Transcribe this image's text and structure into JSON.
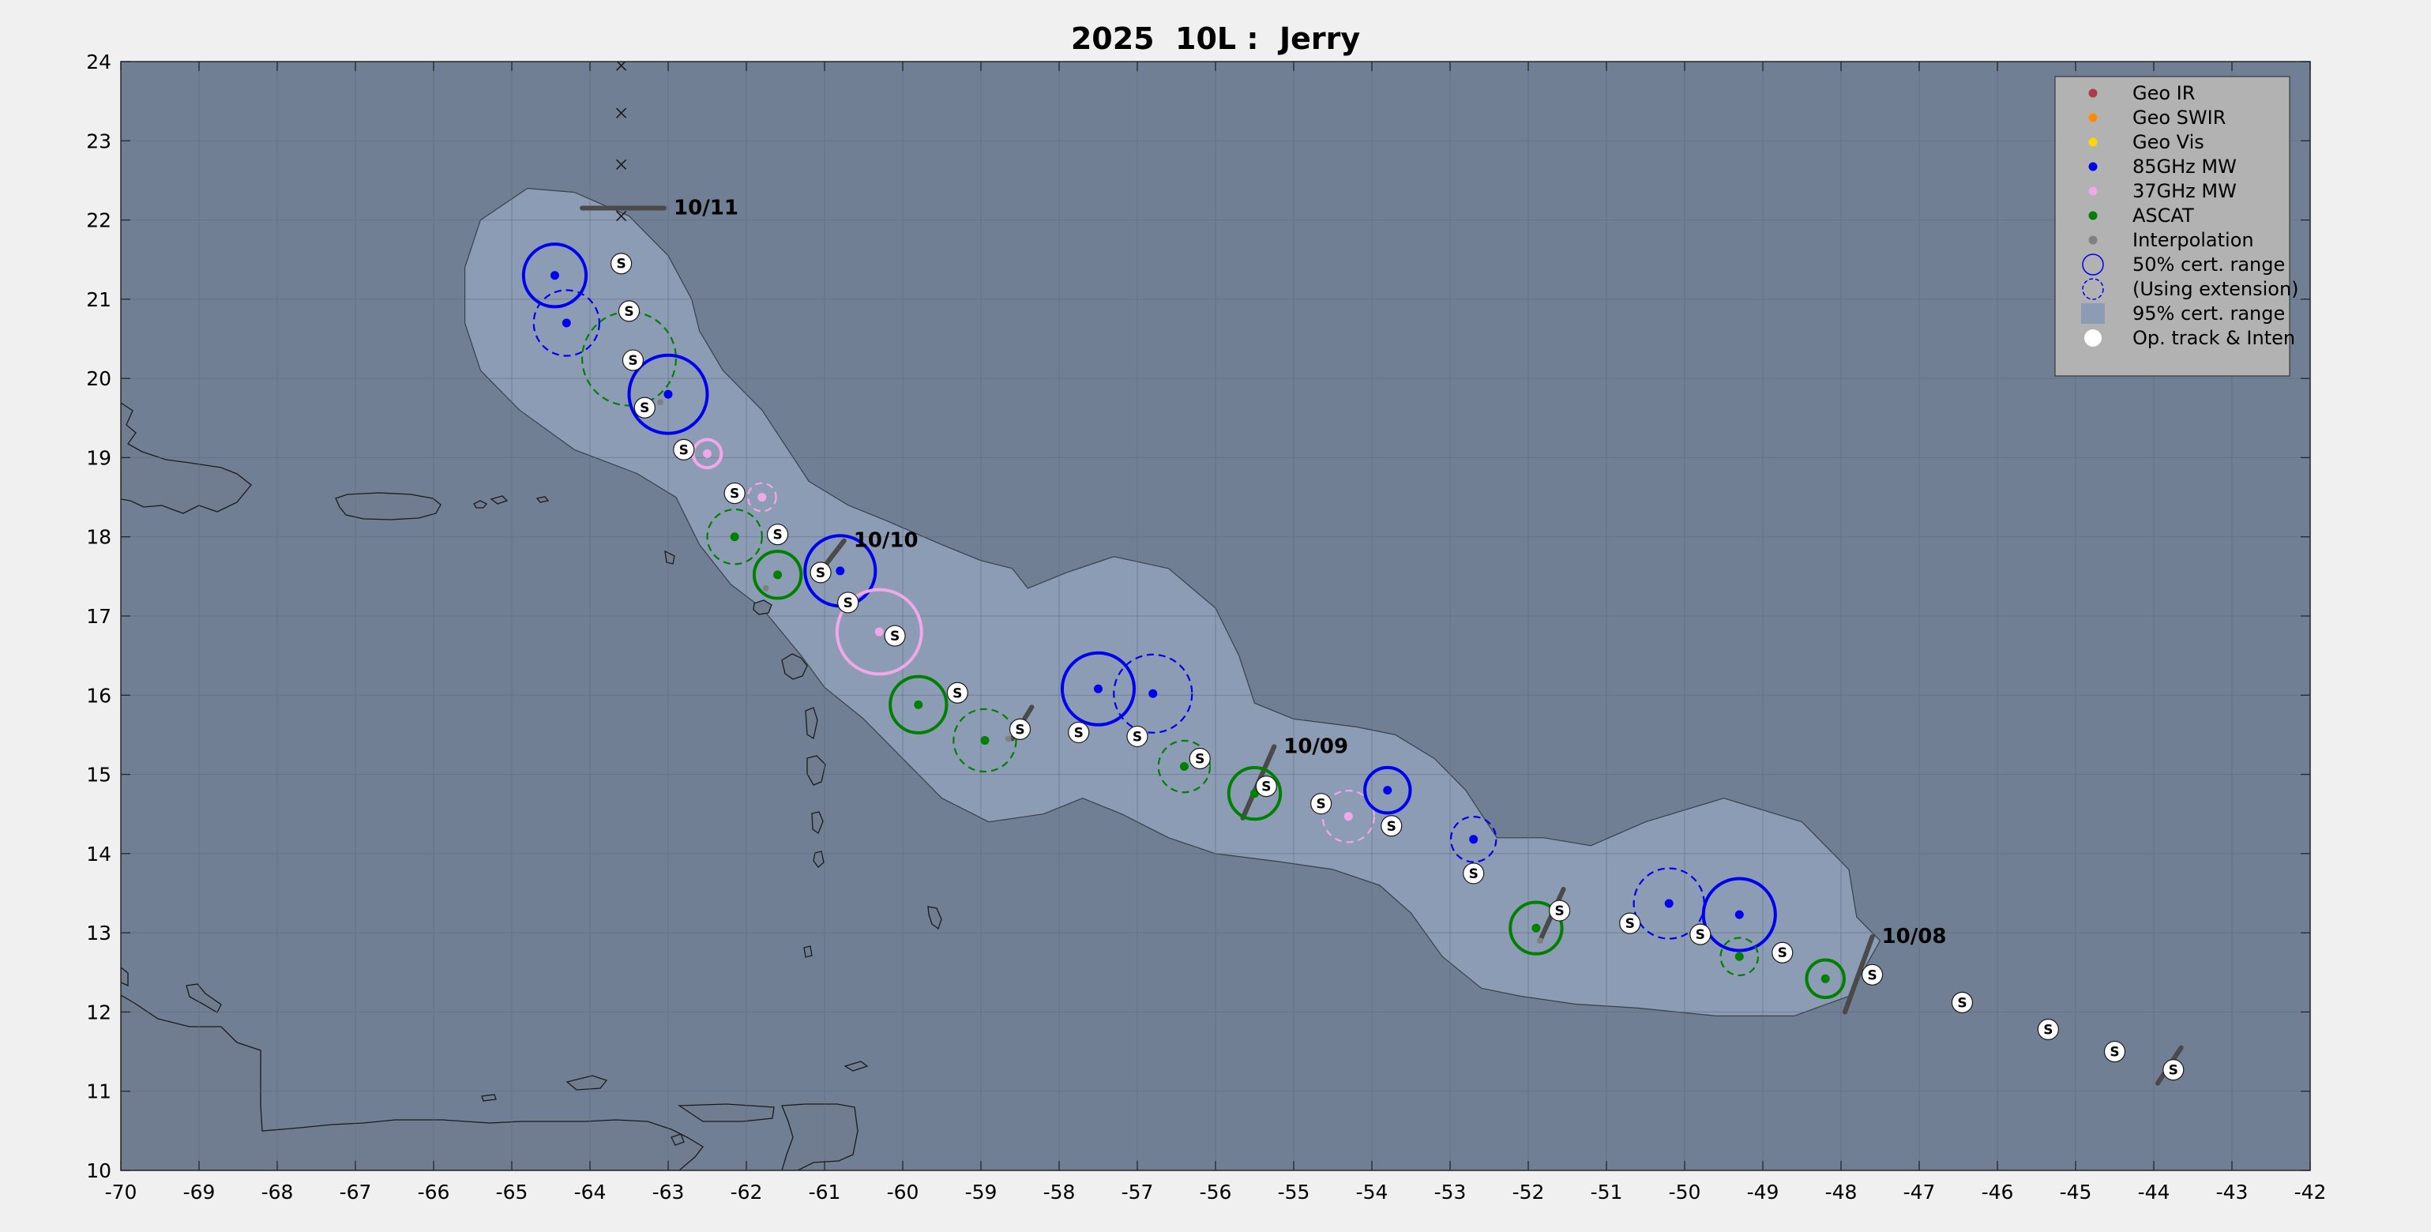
{
  "chart_data": {
    "type": "scatter",
    "title": "2025  10L :  Jerry",
    "xlabel": "",
    "ylabel": "",
    "xlim": [
      -70,
      -42
    ],
    "ylim": [
      10,
      24
    ],
    "grid": true,
    "x_ticks": [
      "-70",
      "-69",
      "-68",
      "-67",
      "-66",
      "-65",
      "-64",
      "-63",
      "-62",
      "-61",
      "-60",
      "-59",
      "-58",
      "-57",
      "-56",
      "-55",
      "-54",
      "-53",
      "-52",
      "-51",
      "-50",
      "-49",
      "-48",
      "-47",
      "-46",
      "-45",
      "-44",
      "-43",
      "-42"
    ],
    "y_ticks": [
      "10",
      "11",
      "12",
      "13",
      "14",
      "15",
      "16",
      "17",
      "18",
      "19",
      "20",
      "21",
      "22",
      "23",
      "24"
    ],
    "legend_position": "top-right",
    "legend": [
      {
        "label": "Geo IR",
        "symbol": "dot",
        "color": "#b03a48"
      },
      {
        "label": "Geo SWIR",
        "symbol": "dot",
        "color": "#ff8c00"
      },
      {
        "label": "Geo Vis",
        "symbol": "dot",
        "color": "#ffd700"
      },
      {
        "label": "85GHz MW",
        "symbol": "dot",
        "color": "#0000ee"
      },
      {
        "label": "37GHz MW",
        "symbol": "dot",
        "color": "#f0a8e8"
      },
      {
        "label": "ASCAT",
        "symbol": "dot",
        "color": "#008000"
      },
      {
        "label": "Interpolation",
        "symbol": "dot",
        "color": "#808080"
      },
      {
        "label": "50% cert. range",
        "symbol": "circle"
      },
      {
        "label": "(Using extension)",
        "symbol": "dashed-circle"
      },
      {
        "label": "95% cert. range",
        "symbol": "square",
        "color": "#8d9cb5"
      },
      {
        "label": "Op. track & Inten",
        "symbol": "white-dot"
      }
    ],
    "colors": {
      "ocean": "#717f94",
      "land": "#707d91",
      "cone": "#8d9cb5",
      "mw85": "#0000ee",
      "mw37": "#f0a8e8",
      "ascat": "#008000",
      "grid": "#5f6a7a"
    },
    "cone_outline": [
      [
        -64.8,
        22.4
      ],
      [
        -64.2,
        22.35
      ],
      [
        -63.5,
        22.05
      ],
      [
        -63.0,
        21.55
      ],
      [
        -62.7,
        21.0
      ],
      [
        -62.6,
        20.6
      ],
      [
        -62.3,
        20.1
      ],
      [
        -61.8,
        19.6
      ],
      [
        -61.5,
        19.15
      ],
      [
        -61.2,
        18.7
      ],
      [
        -60.7,
        18.4
      ],
      [
        -60.2,
        18.2
      ],
      [
        -59.5,
        17.9
      ],
      [
        -59.0,
        17.7
      ],
      [
        -58.6,
        17.6
      ],
      [
        -58.4,
        17.35
      ],
      [
        -57.9,
        17.55
      ],
      [
        -57.3,
        17.75
      ],
      [
        -56.6,
        17.6
      ],
      [
        -56.0,
        17.1
      ],
      [
        -55.7,
        16.5
      ],
      [
        -55.5,
        15.9
      ],
      [
        -55.0,
        15.7
      ],
      [
        -54.2,
        15.6
      ],
      [
        -53.7,
        15.5
      ],
      [
        -53.2,
        15.2
      ],
      [
        -52.8,
        14.8
      ],
      [
        -52.4,
        14.2
      ],
      [
        -51.8,
        14.2
      ],
      [
        -51.2,
        14.1
      ],
      [
        -50.5,
        14.4
      ],
      [
        -49.5,
        14.7
      ],
      [
        -48.5,
        14.4
      ],
      [
        -47.9,
        13.8
      ],
      [
        -47.8,
        13.2
      ],
      [
        -47.5,
        12.9
      ],
      [
        -47.9,
        12.2
      ],
      [
        -48.6,
        11.95
      ],
      [
        -49.6,
        11.95
      ],
      [
        -50.6,
        12.05
      ],
      [
        -51.4,
        12.1
      ],
      [
        -52.1,
        12.2
      ],
      [
        -52.6,
        12.3
      ],
      [
        -53.1,
        12.7
      ],
      [
        -53.5,
        13.25
      ],
      [
        -53.9,
        13.6
      ],
      [
        -54.5,
        13.8
      ],
      [
        -55.2,
        13.9
      ],
      [
        -56.0,
        14.0
      ],
      [
        -56.6,
        14.2
      ],
      [
        -57.2,
        14.5
      ],
      [
        -57.7,
        14.7
      ],
      [
        -58.2,
        14.5
      ],
      [
        -58.9,
        14.4
      ],
      [
        -59.5,
        14.7
      ],
      [
        -60.0,
        15.2
      ],
      [
        -60.5,
        15.7
      ],
      [
        -61.0,
        16.1
      ],
      [
        -61.3,
        16.5
      ],
      [
        -61.8,
        17.1
      ],
      [
        -62.2,
        17.4
      ],
      [
        -62.6,
        17.9
      ],
      [
        -62.9,
        18.5
      ],
      [
        -63.4,
        18.8
      ],
      [
        -64.2,
        19.1
      ],
      [
        -64.9,
        19.6
      ],
      [
        -65.4,
        20.1
      ],
      [
        -65.6,
        20.7
      ],
      [
        -65.6,
        21.4
      ],
      [
        -65.4,
        22.0
      ]
    ],
    "day_markers": [
      {
        "label": "10/11",
        "lon": -63.6,
        "lat": 22.15,
        "bar": [
          [
            -64.1,
            22.15
          ],
          [
            -63.05,
            22.15
          ]
        ]
      },
      {
        "label": "10/10",
        "lon": -60.65,
        "lat": 17.95,
        "bar": [
          [
            -61.1,
            17.5
          ],
          [
            -60.75,
            17.95
          ]
        ]
      },
      {
        "label": "10/09",
        "lon": -55.35,
        "lat": 15.35,
        "bar": [
          [
            -55.65,
            14.45
          ],
          [
            -55.25,
            15.35
          ]
        ]
      },
      {
        "label": "10/08",
        "lon": -47.6,
        "lat": 12.95,
        "bar": [
          [
            -47.95,
            12.0
          ],
          [
            -47.6,
            12.95
          ]
        ]
      }
    ],
    "x_markers": [
      [
        -63.6,
        23.95
      ],
      [
        -63.6,
        23.35
      ],
      [
        -63.6,
        22.7
      ],
      [
        -63.6,
        22.05
      ]
    ],
    "fixes": [
      {
        "lon": -64.45,
        "lat": 21.3,
        "r": 0.4,
        "color": "mw85",
        "ext": false
      },
      {
        "lon": -64.3,
        "lat": 20.7,
        "r": 0.42,
        "color": "mw85",
        "ext": true
      },
      {
        "lon": -63.5,
        "lat": 20.25,
        "r": 0.6,
        "color": "ascat",
        "ext": true
      },
      {
        "lon": -63.0,
        "lat": 19.8,
        "r": 0.5,
        "color": "mw85",
        "ext": false
      },
      {
        "lon": -62.5,
        "lat": 19.05,
        "r": 0.18,
        "color": "mw37",
        "ext": false
      },
      {
        "lon": -61.8,
        "lat": 18.5,
        "r": 0.18,
        "color": "mw37",
        "ext": true
      },
      {
        "lon": -62.15,
        "lat": 18.0,
        "r": 0.35,
        "color": "ascat",
        "ext": true
      },
      {
        "lon": -61.6,
        "lat": 17.52,
        "r": 0.3,
        "color": "ascat",
        "ext": false
      },
      {
        "lon": -60.8,
        "lat": 17.57,
        "r": 0.45,
        "color": "mw85",
        "ext": false
      },
      {
        "lon": -60.3,
        "lat": 16.8,
        "r": 0.54,
        "color": "mw37",
        "ext": false
      },
      {
        "lon": -59.8,
        "lat": 15.88,
        "r": 0.36,
        "color": "ascat",
        "ext": false
      },
      {
        "lon": -58.95,
        "lat": 15.43,
        "r": 0.4,
        "color": "ascat",
        "ext": true
      },
      {
        "lon": -57.5,
        "lat": 16.08,
        "r": 0.46,
        "color": "mw85",
        "ext": false
      },
      {
        "lon": -56.8,
        "lat": 16.02,
        "r": 0.5,
        "color": "mw85",
        "ext": true
      },
      {
        "lon": -56.4,
        "lat": 15.1,
        "r": 0.33,
        "color": "ascat",
        "ext": true
      },
      {
        "lon": -55.5,
        "lat": 14.76,
        "r": 0.33,
        "color": "ascat",
        "ext": false
      },
      {
        "lon": -54.3,
        "lat": 14.47,
        "r": 0.33,
        "color": "mw37",
        "ext": true
      },
      {
        "lon": -53.8,
        "lat": 14.8,
        "r": 0.29,
        "color": "mw85",
        "ext": false
      },
      {
        "lon": -52.7,
        "lat": 14.18,
        "r": 0.29,
        "color": "mw85",
        "ext": true
      },
      {
        "lon": -51.9,
        "lat": 13.06,
        "r": 0.33,
        "color": "ascat",
        "ext": false
      },
      {
        "lon": -50.2,
        "lat": 13.37,
        "r": 0.45,
        "color": "mw85",
        "ext": true
      },
      {
        "lon": -49.3,
        "lat": 13.23,
        "r": 0.46,
        "color": "mw85",
        "ext": false
      },
      {
        "lon": -49.3,
        "lat": 12.7,
        "r": 0.24,
        "color": "ascat",
        "ext": true
      },
      {
        "lon": -48.2,
        "lat": 12.42,
        "r": 0.24,
        "color": "ascat",
        "ext": false
      }
    ],
    "op_track": [
      {
        "lon": -63.6,
        "lat": 21.45,
        "label": "S"
      },
      {
        "lon": -63.5,
        "lat": 20.85,
        "label": "S"
      },
      {
        "lon": -63.45,
        "lat": 20.23,
        "label": "S"
      },
      {
        "lon": -63.3,
        "lat": 19.63,
        "label": "S"
      },
      {
        "lon": -62.8,
        "lat": 19.1,
        "label": "S"
      },
      {
        "lon": -62.15,
        "lat": 18.55,
        "label": "S"
      },
      {
        "lon": -61.6,
        "lat": 18.03,
        "label": "S"
      },
      {
        "lon": -61.05,
        "lat": 17.55,
        "label": "S"
      },
      {
        "lon": -60.7,
        "lat": 17.17,
        "label": "S"
      },
      {
        "lon": -60.1,
        "lat": 16.75,
        "label": "S"
      },
      {
        "lon": -59.3,
        "lat": 16.03,
        "label": "S"
      },
      {
        "lon": -58.5,
        "lat": 15.57,
        "label": "S"
      },
      {
        "lon": -57.75,
        "lat": 15.53,
        "label": "S"
      },
      {
        "lon": -57.0,
        "lat": 15.48,
        "label": "S"
      },
      {
        "lon": -56.2,
        "lat": 15.2,
        "label": "S"
      },
      {
        "lon": -55.35,
        "lat": 14.85,
        "label": "S"
      },
      {
        "lon": -54.65,
        "lat": 14.63,
        "label": "S"
      },
      {
        "lon": -53.75,
        "lat": 14.35,
        "label": "S"
      },
      {
        "lon": -52.7,
        "lat": 13.75,
        "label": "S"
      },
      {
        "lon": -51.6,
        "lat": 13.28,
        "label": "S"
      },
      {
        "lon": -50.7,
        "lat": 13.12,
        "label": "S"
      },
      {
        "lon": -49.8,
        "lat": 12.98,
        "label": "S"
      },
      {
        "lon": -48.75,
        "lat": 12.75,
        "label": "S"
      },
      {
        "lon": -47.6,
        "lat": 12.47,
        "label": "S"
      },
      {
        "lon": -46.45,
        "lat": 12.12,
        "label": "S"
      },
      {
        "lon": -45.35,
        "lat": 11.78,
        "label": "S"
      },
      {
        "lon": -44.5,
        "lat": 11.5,
        "label": "S"
      },
      {
        "lon": -43.75,
        "lat": 11.27,
        "label": "S"
      }
    ],
    "intensity_bars": [
      [
        [
          -61.1,
          17.5
        ],
        [
          -60.75,
          17.95
        ]
      ],
      [
        [
          -58.6,
          15.45
        ],
        [
          -58.35,
          15.85
        ]
      ],
      [
        [
          -55.65,
          14.45
        ],
        [
          -55.25,
          15.35
        ]
      ],
      [
        [
          -51.85,
          12.9
        ],
        [
          -51.55,
          13.55
        ]
      ],
      [
        [
          -47.95,
          12.0
        ],
        [
          -47.6,
          12.95
        ]
      ],
      [
        [
          -43.95,
          11.1
        ],
        [
          -43.65,
          11.55
        ]
      ]
    ],
    "interp_dots": [
      [
        -63.1,
        19.7
      ],
      [
        -61.75,
        17.35
      ],
      [
        -58.65,
        15.45
      ],
      [
        -51.85,
        12.9
      ]
    ]
  }
}
